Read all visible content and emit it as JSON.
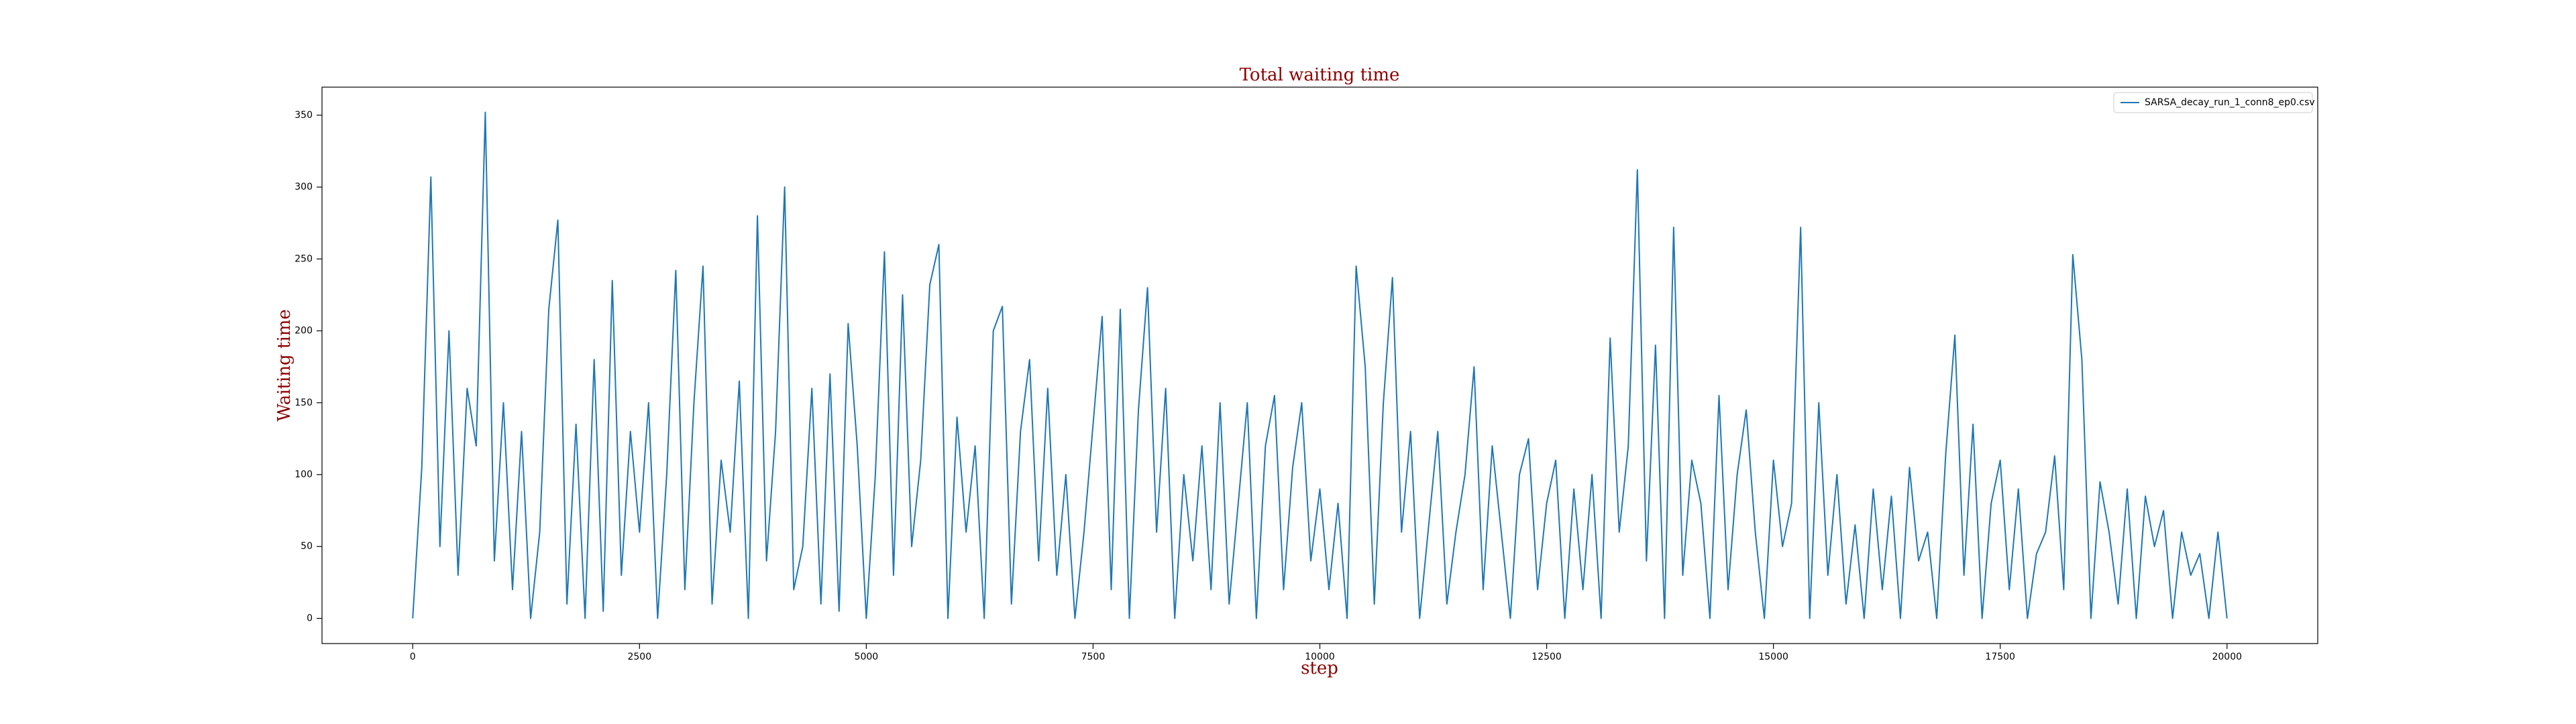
{
  "chart_data": {
    "type": "line",
    "title": "Total waiting time",
    "x_label": "step",
    "y_label": "Waiting time",
    "x": [
      0,
      100,
      200,
      300,
      400,
      500,
      600,
      700,
      800,
      900,
      1000,
      1100,
      1200,
      1300,
      1400,
      1500,
      1600,
      1700,
      1800,
      1900,
      2000,
      2100,
      2200,
      2300,
      2400,
      2500,
      2600,
      2700,
      2800,
      2900,
      3000,
      3100,
      3200,
      3300,
      3400,
      3500,
      3600,
      3700,
      3800,
      3900,
      4000,
      4100,
      4200,
      4300,
      4400,
      4500,
      4600,
      4700,
      4800,
      4900,
      5000,
      5100,
      5200,
      5300,
      5400,
      5500,
      5600,
      5700,
      5800,
      5900,
      6000,
      6100,
      6200,
      6300,
      6400,
      6500,
      6600,
      6700,
      6800,
      6900,
      7000,
      7100,
      7200,
      7300,
      7400,
      7500,
      7600,
      7700,
      7800,
      7900,
      8000,
      8100,
      8200,
      8300,
      8400,
      8500,
      8600,
      8700,
      8800,
      8900,
      9000,
      9100,
      9200,
      9300,
      9400,
      9500,
      9600,
      9700,
      9800,
      9900,
      10000,
      10100,
      10200,
      10300,
      10400,
      10500,
      10600,
      10700,
      10800,
      10900,
      11000,
      11100,
      11200,
      11300,
      11400,
      11500,
      11600,
      11700,
      11800,
      11900,
      12000,
      12100,
      12200,
      12300,
      12400,
      12500,
      12600,
      12700,
      12800,
      12900,
      13000,
      13100,
      13200,
      13300,
      13400,
      13500,
      13600,
      13700,
      13800,
      13900,
      14000,
      14100,
      14200,
      14300,
      14400,
      14500,
      14600,
      14700,
      14800,
      14900,
      15000,
      15100,
      15200,
      15300,
      15400,
      15500,
      15600,
      15700,
      15800,
      15900,
      16000,
      16100,
      16200,
      16300,
      16400,
      16500,
      16600,
      16700,
      16800,
      16900,
      17000,
      17100,
      17200,
      17300,
      17400,
      17500,
      17600,
      17700,
      17800,
      17900,
      18000,
      18100,
      18200,
      18300,
      18400,
      18500,
      18600,
      18700,
      18800,
      18900,
      19000,
      19100,
      19200,
      19300,
      19400,
      19500,
      19600,
      19700,
      19800,
      19900,
      20000
    ],
    "series": [
      {
        "name": "SARSA_decay_run_1_conn8_ep0.csv",
        "color": "#1f77b4",
        "values": [
          0,
          105,
          307,
          50,
          200,
          30,
          160,
          120,
          352,
          40,
          150,
          20,
          130,
          0,
          60,
          215,
          277,
          10,
          135,
          0,
          180,
          5,
          235,
          30,
          130,
          60,
          150,
          0,
          100,
          242,
          20,
          150,
          245,
          10,
          110,
          60,
          165,
          0,
          280,
          40,
          130,
          300,
          20,
          50,
          160,
          10,
          170,
          5,
          205,
          120,
          0,
          100,
          255,
          30,
          225,
          50,
          110,
          232,
          260,
          0,
          140,
          60,
          120,
          0,
          200,
          217,
          10,
          130,
          180,
          40,
          160,
          30,
          100,
          0,
          60,
          135,
          210,
          20,
          215,
          0,
          145,
          230,
          60,
          160,
          0,
          100,
          40,
          120,
          20,
          150,
          10,
          80,
          150,
          0,
          120,
          155,
          20,
          105,
          150,
          40,
          90,
          20,
          80,
          0,
          245,
          175,
          10,
          150,
          237,
          60,
          130,
          0,
          65,
          130,
          10,
          60,
          100,
          175,
          20,
          120,
          60,
          0,
          100,
          125,
          20,
          80,
          110,
          0,
          90,
          20,
          100,
          0,
          195,
          60,
          120,
          312,
          40,
          190,
          0,
          272,
          30,
          110,
          80,
          0,
          155,
          20,
          100,
          145,
          60,
          0,
          110,
          50,
          80,
          272,
          0,
          150,
          30,
          100,
          10,
          65,
          0,
          90,
          20,
          85,
          0,
          105,
          40,
          60,
          0,
          115,
          197,
          30,
          135,
          0,
          80,
          110,
          20,
          90,
          0,
          45,
          60,
          113,
          20,
          253,
          180,
          0,
          95,
          60,
          10,
          90,
          0,
          85,
          50,
          75,
          0,
          60,
          30,
          45,
          0,
          60,
          0
        ]
      }
    ],
    "xlim": [
      -1000,
      21000
    ],
    "xticks": [
      0,
      2500,
      5000,
      7500,
      10000,
      12500,
      15000,
      17500,
      20000
    ],
    "ylim": [
      -17.5,
      369.5
    ],
    "yticks": [
      0,
      50,
      100,
      150,
      200,
      250,
      300,
      350
    ],
    "legend": "upper right"
  }
}
